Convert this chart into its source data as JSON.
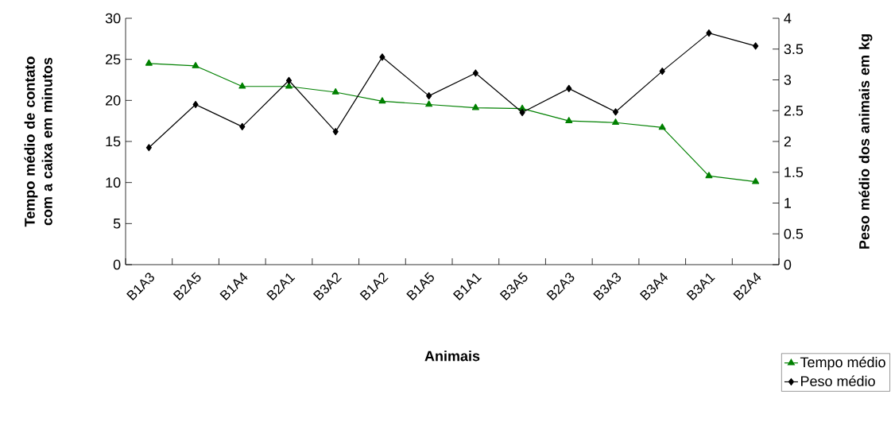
{
  "chart_data": {
    "type": "line",
    "xlabel": "Animais",
    "ylabel": "Tempo médio de contato com a caixa em minutos",
    "y2label": "Peso médio dos animais em kg",
    "categories": [
      "B1A3",
      "B2A5",
      "B1A4",
      "B2A1",
      "B3A2",
      "B1A2",
      "B1A5",
      "B1A1",
      "B3A5",
      "B2A3",
      "B3A3",
      "B3A4",
      "B3A1",
      "B2A4"
    ],
    "series": [
      {
        "name": "Tempo médio",
        "color": "#008000",
        "marker": "triangle",
        "values": [
          24.5,
          24.2,
          21.7,
          21.7,
          21.0,
          19.9,
          19.5,
          19.1,
          19.0,
          17.5,
          17.3,
          16.7,
          10.8,
          10.1
        ]
      },
      {
        "name": "Peso médio",
        "color": "#000000",
        "marker": "diamond",
        "axis": "y2",
        "values": [
          1.9,
          2.6,
          2.24,
          2.99,
          2.16,
          3.37,
          2.74,
          3.11,
          2.47,
          2.86,
          2.48,
          3.14,
          3.76,
          3.55
        ]
      }
    ],
    "ylim": [
      0,
      30
    ],
    "yticks": [
      0,
      5,
      10,
      15,
      20,
      25,
      30
    ],
    "y2lim": [
      0,
      4
    ],
    "y2ticks": [
      0,
      0.5,
      1,
      1.5,
      2,
      2.5,
      3,
      3.5,
      4
    ],
    "legend": "bottom right",
    "grid": false,
    "line_style": "solid"
  }
}
